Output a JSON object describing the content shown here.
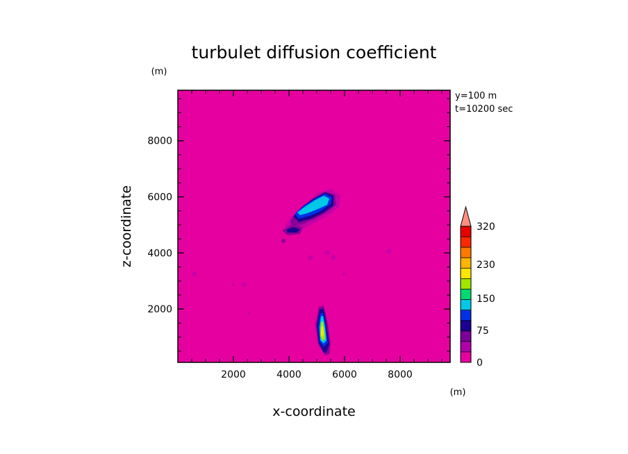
{
  "chart_data": {
    "type": "heatmap",
    "title": "turbulet diffusion coefficient",
    "xlabel": "x-coordinate",
    "ylabel": "z-coordinate",
    "x_unit": "(m)",
    "y_unit": "(m)",
    "xlim": [
      0,
      9800
    ],
    "ylim": [
      100,
      9800
    ],
    "xticks": [
      2000,
      4000,
      6000,
      8000
    ],
    "yticks": [
      2000,
      4000,
      6000,
      8000
    ],
    "info": [
      "y=100 m",
      "t=10200 sec"
    ],
    "colorbar": {
      "levels": [
        0,
        25,
        50,
        75,
        100,
        125,
        150,
        175,
        200,
        230,
        260,
        290,
        320
      ],
      "labels": [
        "0",
        "75",
        "150",
        "230",
        "320"
      ],
      "colors": [
        "#e600a0",
        "#b000aa",
        "#7a0099",
        "#1a0090",
        "#0030e6",
        "#00c8e6",
        "#00d870",
        "#a0e600",
        "#ffe600",
        "#ffb400",
        "#ff7800",
        "#ff2800",
        "#e80000"
      ],
      "extend_color": "#ff9080"
    },
    "background_value": 0,
    "features": [
      {
        "name": "upper plume",
        "x_range": [
          4000,
          6000
        ],
        "z_range": [
          5100,
          6200
        ],
        "peak_level": "125-150"
      },
      {
        "name": "upper plume fragment",
        "x_range": [
          3800,
          4500
        ],
        "z_range": [
          4600,
          5000
        ],
        "peak_level": "75-100"
      },
      {
        "name": "lower plume",
        "x_range": [
          5100,
          5600
        ],
        "z_range": [
          400,
          2200
        ],
        "peak_level": "175-230"
      },
      {
        "name": "small patches",
        "points": [
          [
            700,
            3300
          ],
          [
            2500,
            2900
          ],
          [
            4900,
            3900
          ],
          [
            5500,
            4100
          ],
          [
            5600,
            3900
          ],
          [
            6100,
            3300
          ],
          [
            7700,
            4100
          ]
        ],
        "peak_level": "0-25"
      }
    ]
  }
}
